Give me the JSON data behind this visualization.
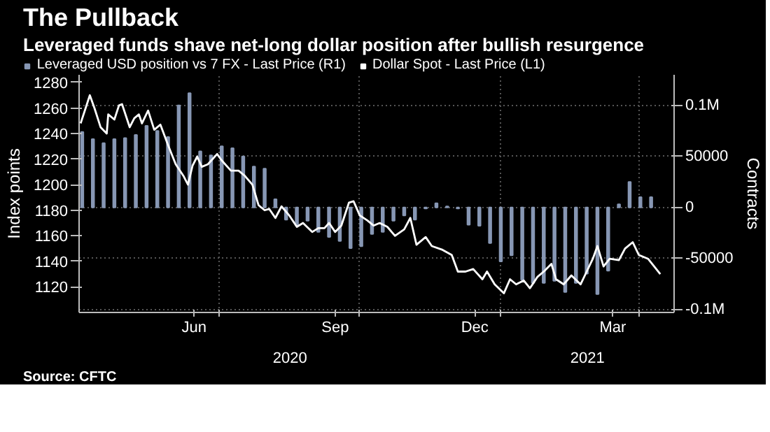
{
  "chart_data": {
    "type": "line",
    "title": "The Pullback",
    "subtitle": "Leveraged funds shave net-long dollar position after bullish resurgence",
    "ylabel": "Index points",
    "y2label": "Contracts",
    "annotations": [
      "2020",
      "2021",
      "Source: CFTC"
    ],
    "xlim": [
      "2020-04-01",
      "2021-04-24"
    ],
    "xticks": [
      {
        "value": "2020-06-15",
        "label": "Jun"
      },
      {
        "value": "2020-09-15",
        "label": "Sep"
      },
      {
        "value": "2020-12-15",
        "label": "Dec"
      },
      {
        "value": "2021-03-15",
        "label": "Mar"
      },
      {
        "value": "2020-07-01",
        "label": null
      },
      {
        "value": "2020-10-01",
        "label": null
      },
      {
        "value": "2021-01-01",
        "label": null
      },
      {
        "value": "2021-04-01",
        "label": null
      }
    ],
    "ylim": [
      1100,
      1286
    ],
    "yticks": [
      1120,
      1140,
      1160,
      1180,
      1200,
      1220,
      1240,
      1260,
      1280
    ],
    "y2lim": [
      -103000,
      130000
    ],
    "y2ticks": [
      {
        "value": -100000,
        "label": "-0.1M"
      },
      -50000,
      0,
      50000,
      {
        "value": 100000,
        "label": "0.1M"
      }
    ],
    "grid": true,
    "legend": "top left",
    "series": [
      {
        "name": "Leveraged USD position vs 7 FX - Last Price (R1)",
        "type": "bar",
        "axis": "y2",
        "color": "#8797b4",
        "x": [
          "2020-04-03",
          "2020-04-10",
          "2020-04-17",
          "2020-04-24",
          "2020-05-01",
          "2020-05-08",
          "2020-05-15",
          "2020-05-22",
          "2020-05-29",
          "2020-06-05",
          "2020-06-12",
          "2020-06-19",
          "2020-06-26",
          "2020-07-03",
          "2020-07-10",
          "2020-07-17",
          "2020-07-24",
          "2020-07-31",
          "2020-08-07",
          "2020-08-14",
          "2020-08-21",
          "2020-08-28",
          "2020-09-04",
          "2020-09-11",
          "2020-09-18",
          "2020-09-25",
          "2020-10-02",
          "2020-10-09",
          "2020-10-16",
          "2020-10-23",
          "2020-10-30",
          "2020-11-06",
          "2020-11-13",
          "2020-11-20",
          "2020-11-27",
          "2020-12-04",
          "2020-12-11",
          "2020-12-18",
          "2020-12-25",
          "2021-01-01",
          "2021-01-08",
          "2021-01-15",
          "2021-01-22",
          "2021-01-29",
          "2021-02-05",
          "2021-02-12",
          "2021-02-19",
          "2021-02-26",
          "2021-03-05",
          "2021-03-12",
          "2021-03-19",
          "2021-03-26",
          "2021-04-02",
          "2021-04-09"
        ],
        "values": [
          74000,
          67000,
          63000,
          67000,
          68000,
          71000,
          80000,
          75000,
          69000,
          100000,
          112000,
          55000,
          51000,
          60000,
          58000,
          50000,
          40000,
          38000,
          8000,
          -12000,
          -18000,
          -13000,
          -24000,
          -29000,
          -33000,
          -40000,
          -38000,
          -26000,
          -24000,
          -13000,
          -8000,
          -12000,
          -1000,
          4000,
          1000,
          -1000,
          -17000,
          -18000,
          -35000,
          -53000,
          -47000,
          -71000,
          -74000,
          -74000,
          -72000,
          -83000,
          -74000,
          -65000,
          -85000,
          -62000,
          3000,
          25000,
          10000,
          10000
        ]
      },
      {
        "name": "Dollar Spot - Last Price (L1)",
        "color": "#ffffff",
        "x": [
          "2020-04-02",
          "2020-04-08",
          "2020-04-11",
          "2020-04-15",
          "2020-04-19",
          "2020-04-20",
          "2020-04-24",
          "2020-04-27",
          "2020-04-29",
          "2020-05-04",
          "2020-05-07",
          "2020-05-10",
          "2020-05-12",
          "2020-05-16",
          "2020-05-20",
          "2020-05-24",
          "2020-05-29",
          "2020-06-03",
          "2020-06-08",
          "2020-06-11",
          "2020-06-14",
          "2020-06-17",
          "2020-06-20",
          "2020-06-24",
          "2020-06-30",
          "2020-07-03",
          "2020-07-09",
          "2020-07-14",
          "2020-07-18",
          "2020-07-23",
          "2020-07-27",
          "2020-07-31",
          "2020-08-03",
          "2020-08-07",
          "2020-08-11",
          "2020-08-16",
          "2020-08-21",
          "2020-08-25",
          "2020-08-31",
          "2020-09-04",
          "2020-09-08",
          "2020-09-11",
          "2020-09-15",
          "2020-09-19",
          "2020-09-24",
          "2020-09-27",
          "2020-10-01",
          "2020-10-06",
          "2020-10-10",
          "2020-10-14",
          "2020-10-19",
          "2020-10-24",
          "2020-10-30",
          "2020-11-03",
          "2020-11-07",
          "2020-11-13",
          "2020-11-17",
          "2020-11-24",
          "2020-11-30",
          "2020-12-04",
          "2020-12-09",
          "2020-12-14",
          "2020-12-20",
          "2020-12-23",
          "2020-12-28",
          "2021-01-03",
          "2021-01-07",
          "2021-01-11",
          "2021-01-16",
          "2021-01-20",
          "2021-01-25",
          "2021-01-29",
          "2021-02-03",
          "2021-02-06",
          "2021-02-11",
          "2021-02-16",
          "2021-02-22",
          "2021-02-26",
          "2021-03-02",
          "2021-03-05",
          "2021-03-09",
          "2021-03-13",
          "2021-03-19",
          "2021-03-23",
          "2021-03-28",
          "2021-04-01",
          "2021-04-07",
          "2021-04-11",
          "2021-04-15"
        ],
        "values": [
          1248,
          1270,
          1260,
          1245,
          1240,
          1255,
          1251,
          1262,
          1263,
          1245,
          1252,
          1255,
          1248,
          1258,
          1243,
          1247,
          1231,
          1216,
          1207,
          1200,
          1215,
          1222,
          1214,
          1216,
          1224,
          1219,
          1211,
          1211,
          1207,
          1200,
          1184,
          1180,
          1181,
          1174,
          1183,
          1176,
          1167,
          1170,
          1163,
          1166,
          1166,
          1170,
          1163,
          1168,
          1186,
          1187,
          1176,
          1172,
          1168,
          1170,
          1167,
          1160,
          1165,
          1174,
          1153,
          1159,
          1152,
          1149,
          1145,
          1132,
          1132,
          1134,
          1126,
          1132,
          1122,
          1115,
          1126,
          1122,
          1125,
          1119,
          1128,
          1132,
          1138,
          1126,
          1122,
          1129,
          1122,
          1132,
          1142,
          1152,
          1136,
          1142,
          1141,
          1150,
          1155,
          1145,
          1142,
          1136,
          1130
        ]
      }
    ]
  }
}
